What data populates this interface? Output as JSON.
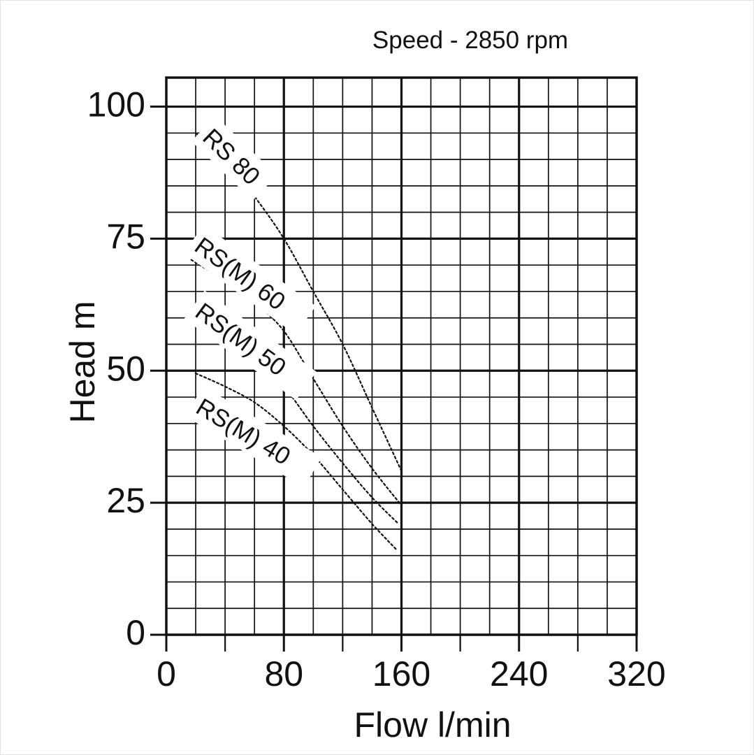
{
  "chart_data": {
    "type": "line",
    "title": "Speed - 2850 rpm",
    "xlabel": "Flow l/min",
    "ylabel": "Head m",
    "x_unit": "l/min",
    "y_unit": "m",
    "xlim": [
      0,
      320
    ],
    "ylim": [
      0,
      105.5
    ],
    "x_major_ticks": [
      0,
      80,
      160,
      240,
      320
    ],
    "x_minor_step": 20,
    "x_axis_tick_marks_step": 40,
    "y_major_ticks": [
      100,
      75,
      50,
      25,
      0
    ],
    "y_minor_step": 5,
    "grid": "major-and-minor-on",
    "legend_position": "inline-rotated-curve-labels",
    "line_style": "dotted-black",
    "colors": {
      "line": "#111111",
      "background": "#ffffff"
    },
    "series": [
      {
        "name": "RS 80",
        "points": [
          [
            20,
            95
          ],
          [
            40,
            90
          ],
          [
            60,
            83
          ],
          [
            80,
            75
          ],
          [
            100,
            65
          ],
          [
            120,
            55
          ],
          [
            140,
            43
          ],
          [
            160,
            31
          ]
        ]
      },
      {
        "name": "RS(M) 60",
        "points": [
          [
            17,
            71
          ],
          [
            40,
            67
          ],
          [
            60,
            63
          ],
          [
            80,
            57.5
          ],
          [
            100,
            48.5
          ],
          [
            120,
            39.5
          ],
          [
            140,
            31.5
          ],
          [
            160,
            24.5
          ]
        ]
      },
      {
        "name": "RS(M) 50",
        "points": [
          [
            20,
            59.5
          ],
          [
            40,
            56.5
          ],
          [
            60,
            52.5
          ],
          [
            80,
            47
          ],
          [
            100,
            39.5
          ],
          [
            120,
            32.5
          ],
          [
            140,
            26
          ],
          [
            158,
            21
          ]
        ]
      },
      {
        "name": "RS(M) 40",
        "points": [
          [
            20,
            49.5
          ],
          [
            40,
            47
          ],
          [
            60,
            44
          ],
          [
            80,
            39.5
          ],
          [
            100,
            34
          ],
          [
            120,
            27.5
          ],
          [
            140,
            21
          ],
          [
            157,
            16
          ]
        ]
      }
    ]
  }
}
